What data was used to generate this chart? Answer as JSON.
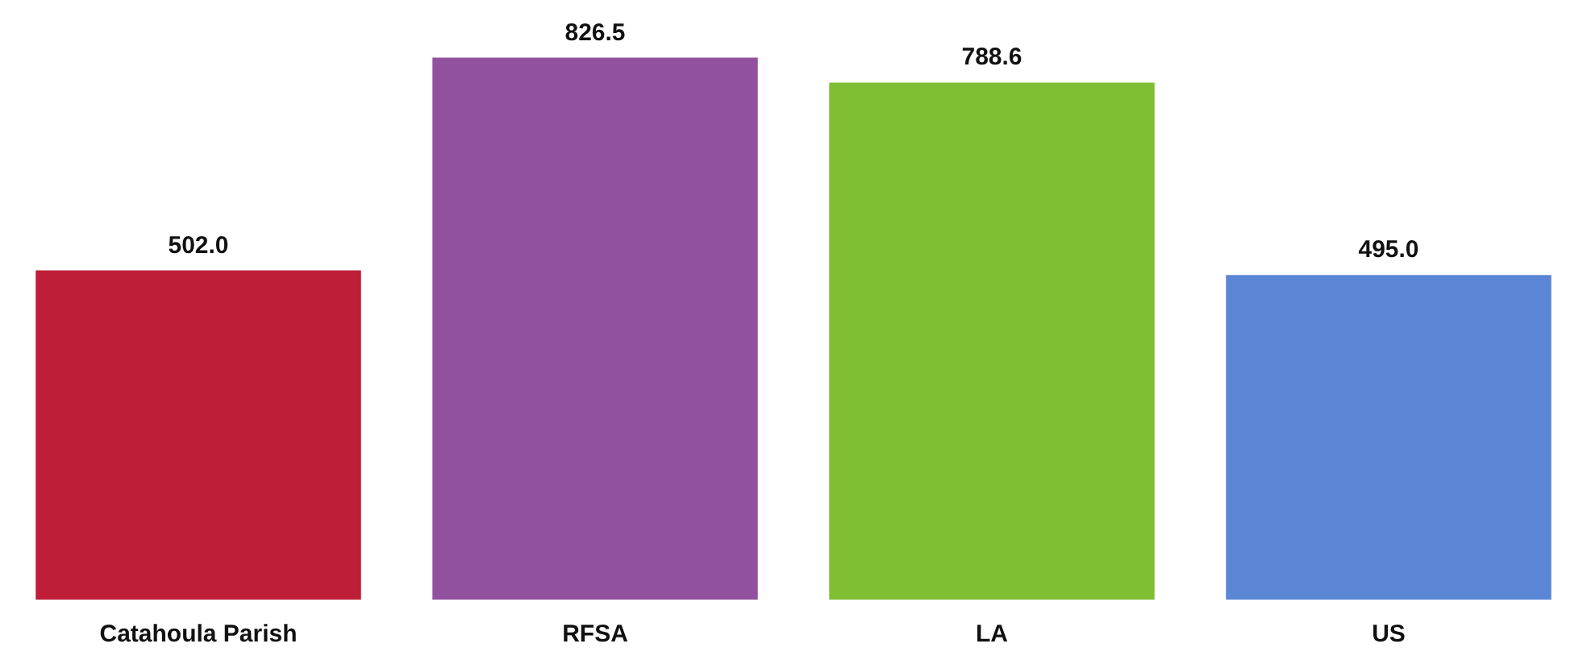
{
  "chart_data": {
    "type": "bar",
    "categories": [
      "Catahoula Parish",
      "RFSA",
      "LA",
      "US"
    ],
    "values": [
      502.0,
      826.5,
      788.6,
      495.0
    ],
    "value_labels": [
      "502.0",
      "826.5",
      "788.6",
      "495.0"
    ],
    "colors": [
      "#be1e37",
      "#92519e",
      "#80bf33",
      "#5b86d6"
    ]
  }
}
